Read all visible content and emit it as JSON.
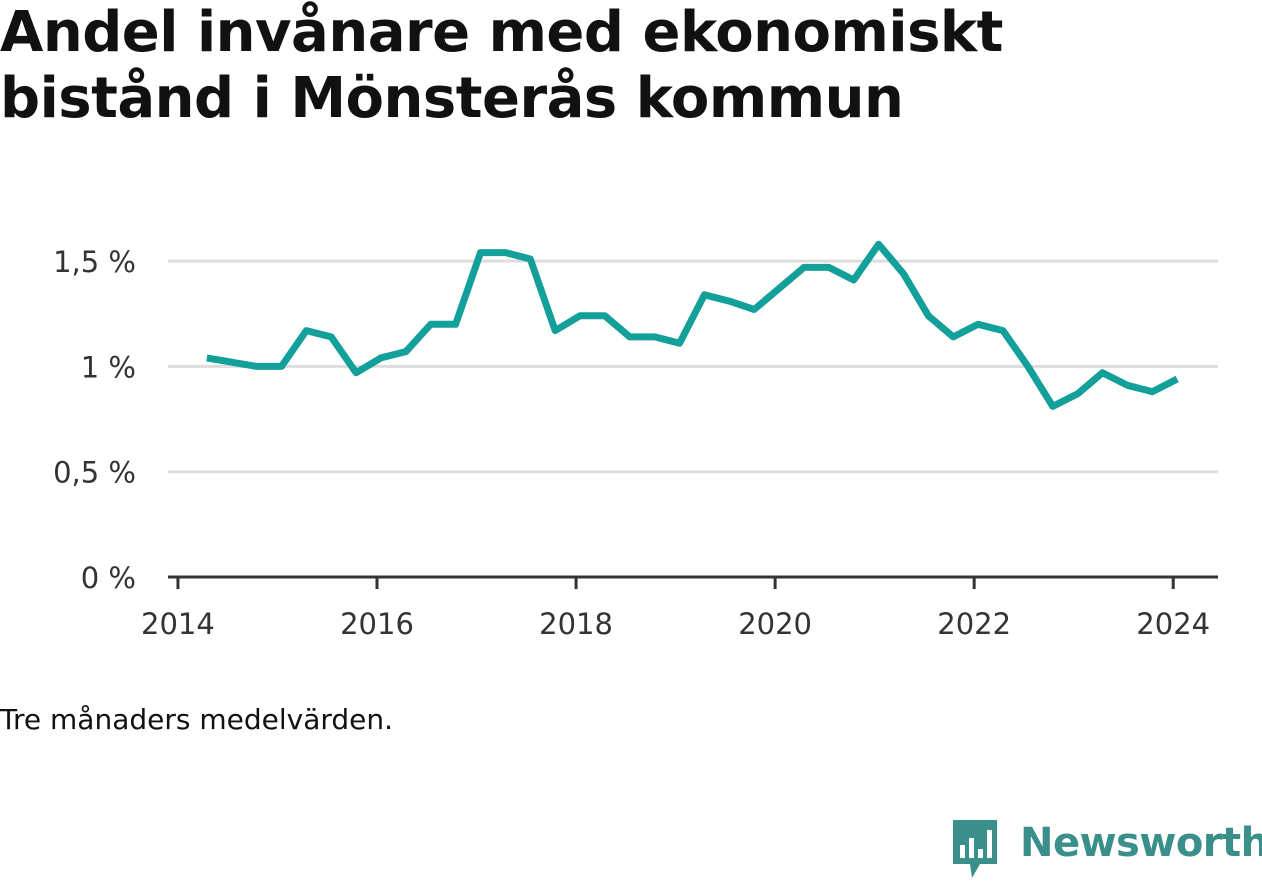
{
  "title": "Andel invånare med ekonomiskt bistånd i Mönsterås kommun",
  "note": "Tre månaders medelvärden.",
  "brand": {
    "name": "Newsworthy",
    "logo": "newsworthy-logo-icon",
    "color": "#3a8f8a"
  },
  "chart_data": {
    "type": "line",
    "title": "Andel invånare med ekonomiskt bistånd i Mönsterås kommun",
    "xlabel": "",
    "ylabel": "",
    "xlim": [
      2013.9,
      2024.45
    ],
    "ylim": [
      0,
      1.6
    ],
    "x_ticks": [
      2014,
      2016,
      2018,
      2020,
      2022,
      2024
    ],
    "x_tick_labels": [
      "2014",
      "2016",
      "2018",
      "2020",
      "2022",
      "2024"
    ],
    "y_ticks": [
      0,
      0.5,
      1,
      1.5
    ],
    "y_tick_labels": [
      "0 %",
      "0,5 %",
      "1 %",
      "1,5 %"
    ],
    "grid": "horizontal",
    "line_color": "#14a09a",
    "series": [
      {
        "x": [
          2014.29,
          2014.54,
          2014.79,
          2015.04,
          2015.29,
          2015.54,
          2015.79,
          2016.04,
          2016.29,
          2016.54,
          2016.79,
          2017.04,
          2017.29,
          2017.54,
          2017.79,
          2018.04,
          2018.29,
          2018.54,
          2018.79,
          2019.04,
          2019.29,
          2019.54,
          2019.79,
          2020.04,
          2020.29,
          2020.54,
          2020.79,
          2021.04,
          2021.29,
          2021.54,
          2021.79,
          2022.04,
          2022.29,
          2022.54,
          2022.79,
          2023.04,
          2023.29,
          2023.54,
          2023.79,
          2024.04
        ],
        "y": [
          1.04,
          1.02,
          1.0,
          1.0,
          1.17,
          1.14,
          0.97,
          1.04,
          1.07,
          1.2,
          1.2,
          1.54,
          1.54,
          1.51,
          1.17,
          1.24,
          1.24,
          1.14,
          1.14,
          1.11,
          1.34,
          1.31,
          1.27,
          1.37,
          1.47,
          1.47,
          1.41,
          1.58,
          1.44,
          1.24,
          1.14,
          1.2,
          1.17,
          1.0,
          0.81,
          0.87,
          0.97,
          0.91,
          0.88,
          0.94
        ]
      }
    ]
  }
}
